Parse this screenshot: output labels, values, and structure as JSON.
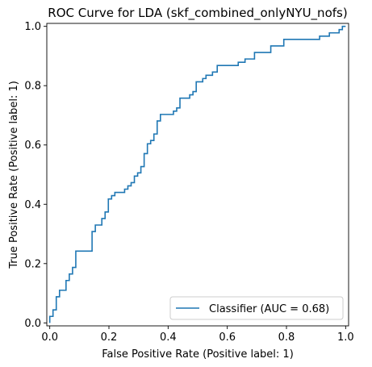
{
  "chart_data": {
    "type": "line",
    "title": "ROC Curve for LDA (skf_combined_onlyNYU_nofs)",
    "xlabel": "False Positive Rate (Positive label: 1)",
    "ylabel": "True Positive Rate (Positive label: 1)",
    "xlim": [
      -0.01,
      1.01
    ],
    "ylim": [
      -0.01,
      1.01
    ],
    "xticks": [
      0.0,
      0.2,
      0.4,
      0.6,
      0.8,
      1.0
    ],
    "yticks": [
      0.0,
      0.2,
      0.4,
      0.6,
      0.8,
      1.0
    ],
    "xtick_labels": [
      "0.0",
      "0.2",
      "0.4",
      "0.6",
      "0.8",
      "1.0"
    ],
    "ytick_labels": [
      "0.0",
      "0.2",
      "0.4",
      "0.6",
      "0.8",
      "1.0"
    ],
    "grid": false,
    "legend_position": "lower-right",
    "series": [
      {
        "name": "Classifier (AUC = 0.68)",
        "color": "#1f77b4",
        "x": [
          0.0,
          0.0,
          0.011,
          0.011,
          0.022,
          0.022,
          0.033,
          0.033,
          0.055,
          0.055,
          0.066,
          0.066,
          0.077,
          0.077,
          0.088,
          0.088,
          0.143,
          0.143,
          0.154,
          0.154,
          0.176,
          0.176,
          0.187,
          0.187,
          0.198,
          0.198,
          0.209,
          0.209,
          0.22,
          0.22,
          0.253,
          0.253,
          0.264,
          0.264,
          0.275,
          0.275,
          0.286,
          0.286,
          0.297,
          0.297,
          0.308,
          0.308,
          0.319,
          0.319,
          0.33,
          0.33,
          0.341,
          0.341,
          0.352,
          0.352,
          0.363,
          0.363,
          0.374,
          0.374,
          0.418,
          0.418,
          0.429,
          0.429,
          0.44,
          0.44,
          0.473,
          0.473,
          0.484,
          0.484,
          0.495,
          0.495,
          0.517,
          0.517,
          0.528,
          0.528,
          0.55,
          0.55,
          0.566,
          0.566,
          0.637,
          0.637,
          0.66,
          0.66,
          0.692,
          0.692,
          0.747,
          0.747,
          0.791,
          0.791,
          0.912,
          0.912,
          0.945,
          0.945,
          0.978,
          0.978,
          0.989,
          0.989,
          1.0
        ],
        "y": [
          0.0,
          0.022,
          0.022,
          0.044,
          0.044,
          0.088,
          0.088,
          0.11,
          0.11,
          0.143,
          0.143,
          0.165,
          0.165,
          0.187,
          0.187,
          0.242,
          0.242,
          0.308,
          0.308,
          0.33,
          0.33,
          0.352,
          0.352,
          0.374,
          0.374,
          0.418,
          0.418,
          0.429,
          0.429,
          0.44,
          0.44,
          0.451,
          0.451,
          0.462,
          0.462,
          0.473,
          0.473,
          0.495,
          0.495,
          0.506,
          0.506,
          0.527,
          0.527,
          0.571,
          0.571,
          0.604,
          0.604,
          0.615,
          0.615,
          0.637,
          0.637,
          0.681,
          0.681,
          0.703,
          0.703,
          0.714,
          0.714,
          0.725,
          0.725,
          0.758,
          0.758,
          0.769,
          0.769,
          0.78,
          0.78,
          0.813,
          0.813,
          0.824,
          0.824,
          0.835,
          0.835,
          0.846,
          0.846,
          0.868,
          0.868,
          0.879,
          0.879,
          0.89,
          0.89,
          0.912,
          0.912,
          0.934,
          0.934,
          0.956,
          0.956,
          0.967,
          0.967,
          0.978,
          0.978,
          0.989,
          0.989,
          1.0,
          1.0
        ]
      }
    ]
  }
}
